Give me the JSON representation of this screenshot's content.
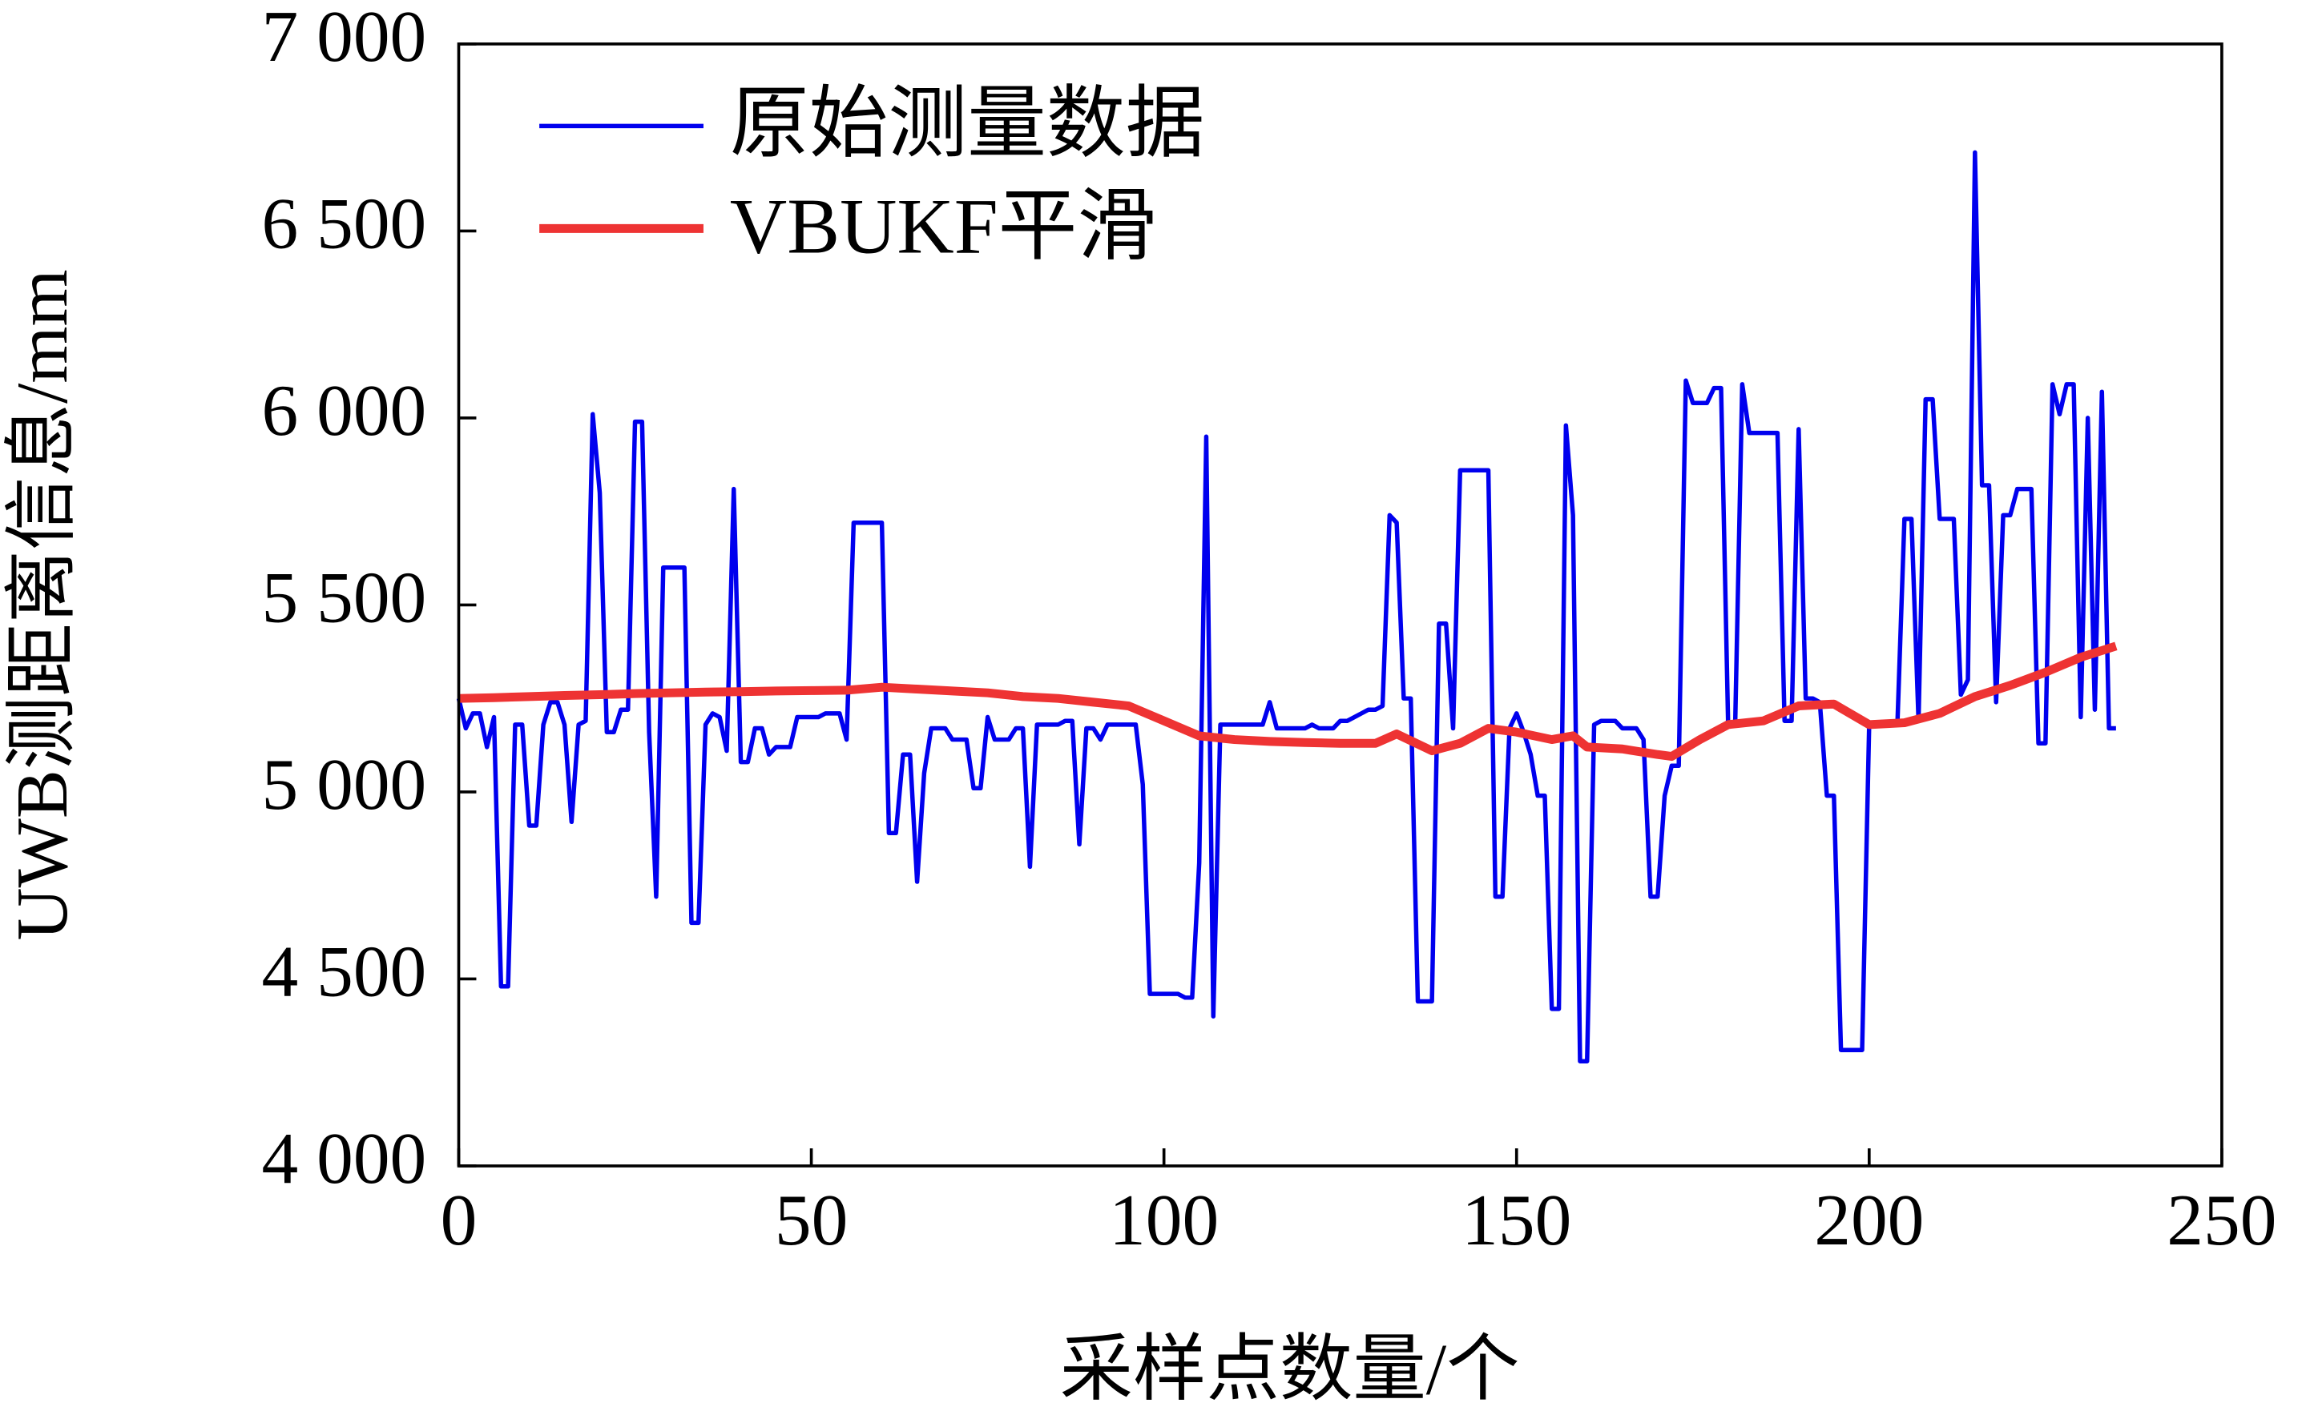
{
  "chart_data": {
    "type": "line",
    "xlabel": "采样点数量/个",
    "ylabel": "UWB测距离信息/mm",
    "xlim": [
      0,
      250
    ],
    "xticks": [
      0,
      50,
      100,
      150,
      200,
      250
    ],
    "ylim": [
      4000,
      7000
    ],
    "yticks": [
      {
        "value": 4000,
        "label": "4 000"
      },
      {
        "value": 4500,
        "label": "4 500"
      },
      {
        "value": 5000,
        "label": "5 000"
      },
      {
        "value": 5500,
        "label": "5 500"
      },
      {
        "value": 6000,
        "label": "6 000"
      },
      {
        "value": 6500,
        "label": "6 500"
      },
      {
        "value": 7000,
        "label": "7 000"
      }
    ],
    "legend": "upper left",
    "series": [
      {
        "name": "原始测量数据",
        "color": "#0000ee",
        "x": [
          0,
          1,
          2,
          3,
          4,
          5,
          6,
          7,
          8,
          9,
          10,
          11,
          12,
          13,
          14,
          15,
          16,
          17,
          18,
          19,
          20,
          21,
          22,
          23,
          24,
          25,
          26,
          27,
          28,
          29,
          30,
          31,
          32,
          33,
          34,
          35,
          36,
          37,
          38,
          39,
          40,
          41,
          42,
          43,
          44,
          45,
          46,
          47,
          48,
          49,
          50,
          51,
          52,
          53,
          54,
          55,
          56,
          57,
          58,
          59,
          60,
          61,
          62,
          63,
          64,
          65,
          66,
          67,
          68,
          69,
          70,
          71,
          72,
          73,
          74,
          75,
          76,
          77,
          78,
          79,
          80,
          81,
          82,
          83,
          84,
          85,
          86,
          87,
          88,
          89,
          90,
          91,
          92,
          93,
          94,
          95,
          96,
          97,
          98,
          99,
          100,
          101,
          102,
          103,
          104,
          105,
          106,
          107,
          108,
          109,
          110,
          111,
          112,
          113,
          114,
          115,
          116,
          117,
          118,
          119,
          120,
          121,
          122,
          123,
          124,
          125,
          126,
          127,
          128,
          129,
          130,
          131,
          132,
          133,
          134,
          135,
          136,
          137,
          138,
          139,
          140,
          141,
          142,
          143,
          144,
          145,
          146,
          147,
          148,
          149,
          150,
          151,
          152,
          153,
          154,
          155,
          156,
          157,
          158,
          159,
          160,
          161,
          162,
          163,
          164,
          165,
          166,
          167,
          168,
          169,
          170,
          171,
          172,
          173,
          174,
          175,
          176,
          177,
          178,
          179,
          180,
          181,
          182,
          183,
          184,
          185,
          186,
          187,
          188,
          189,
          190,
          191,
          192,
          193,
          194,
          195,
          196,
          197,
          198,
          199,
          200,
          201,
          202,
          203,
          204,
          205,
          206,
          207,
          208,
          209,
          210,
          211,
          212,
          213,
          214,
          215,
          216,
          217,
          218,
          219,
          220,
          221,
          222,
          223,
          224,
          225,
          226,
          227,
          228,
          229,
          230,
          231,
          232,
          233,
          234,
          235
        ],
        "values": [
          5250,
          5170,
          5210,
          5210,
          5120,
          5200,
          4480,
          4480,
          5180,
          5180,
          4910,
          4910,
          5180,
          5240,
          5240,
          5180,
          4920,
          5180,
          5190,
          6010,
          5800,
          5160,
          5160,
          5220,
          5220,
          5990,
          5990,
          5160,
          4720,
          5600,
          5600,
          5600,
          5600,
          4650,
          4650,
          5180,
          5210,
          5200,
          5110,
          5810,
          5080,
          5080,
          5170,
          5170,
          5100,
          5120,
          5120,
          5120,
          5200,
          5200,
          5200,
          5200,
          5210,
          5210,
          5210,
          5140,
          5720,
          5720,
          5720,
          5720,
          5720,
          4890,
          4890,
          5100,
          5100,
          4760,
          5050,
          5170,
          5170,
          5170,
          5140,
          5140,
          5140,
          5010,
          5010,
          5200,
          5140,
          5140,
          5140,
          5170,
          5170,
          4800,
          5180,
          5180,
          5180,
          5180,
          5190,
          5190,
          4860,
          5170,
          5170,
          5140,
          5180,
          5180,
          5180,
          5180,
          5180,
          5020,
          4460,
          4460,
          4460,
          4460,
          4460,
          4450,
          4450,
          4810,
          5950,
          4400,
          5180,
          5180,
          5180,
          5180,
          5180,
          5180,
          5180,
          5240,
          5170,
          5170,
          5170,
          5170,
          5170,
          5180,
          5170,
          5170,
          5170,
          5190,
          5190,
          5200,
          5210,
          5220,
          5220,
          5230,
          5740,
          5720,
          5250,
          5250,
          4440,
          4440,
          4440,
          5450,
          5450,
          5170,
          5860,
          5860,
          5860,
          5860,
          5860,
          4720,
          4720,
          5170,
          5210,
          5160,
          5100,
          4990,
          4990,
          4420,
          4420,
          5980,
          5740,
          4280,
          4280,
          5180,
          5190,
          5190,
          5190,
          5170,
          5170,
          5170,
          5140,
          4720,
          4720,
          4990,
          5070,
          5070,
          6100,
          6040,
          6040,
          6040,
          6080,
          6080,
          5180,
          5180,
          6090,
          5960,
          5960,
          5960,
          5960,
          5960,
          5190,
          5190,
          5970,
          5250,
          5250,
          5240,
          4990,
          4990,
          4310,
          4310,
          4310,
          4310,
          5180,
          5180,
          5180,
          5180,
          5180,
          5730,
          5730,
          5190,
          6050,
          6050,
          5730,
          5730,
          5730,
          5260,
          5300,
          6710,
          5820,
          5820,
          5240,
          5740,
          5740,
          5810,
          5810,
          5810,
          5130,
          5130,
          6090,
          6010,
          6090,
          6090,
          5200,
          6000,
          5220,
          6070,
          5170,
          5170
        ]
      },
      {
        "name": "VBUKF平滑",
        "color": "#ee3333",
        "x": [
          0,
          5,
          10,
          15,
          20,
          25,
          30,
          35,
          40,
          45,
          50,
          55,
          60,
          65,
          70,
          75,
          80,
          85,
          90,
          95,
          100,
          105,
          110,
          115,
          120,
          125,
          130,
          133,
          138,
          142,
          146,
          150,
          155,
          158,
          160,
          165,
          170,
          172,
          176,
          180,
          185,
          190,
          195,
          200,
          205,
          210,
          215,
          220,
          225,
          230,
          235
        ],
        "values": [
          5250,
          5252,
          5255,
          5258,
          5260,
          5263,
          5265,
          5267,
          5268,
          5270,
          5271,
          5272,
          5280,
          5275,
          5270,
          5265,
          5255,
          5250,
          5240,
          5230,
          5190,
          5150,
          5140,
          5135,
          5132,
          5130,
          5130,
          5155,
          5110,
          5130,
          5170,
          5160,
          5140,
          5150,
          5120,
          5115,
          5100,
          5095,
          5140,
          5180,
          5190,
          5230,
          5235,
          5180,
          5185,
          5210,
          5255,
          5285,
          5320,
          5360,
          5390
        ]
      }
    ]
  }
}
